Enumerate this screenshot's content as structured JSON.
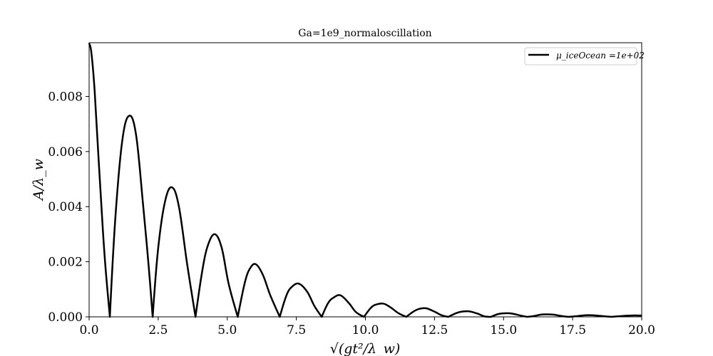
{
  "chart_data": {
    "type": "line",
    "title": "Ga=1e9_normaloscillation",
    "xlabel": "√(gt²/λ_w)",
    "ylabel": "A/λ_w",
    "xlim": [
      0,
      20
    ],
    "ylim": [
      0,
      0.00995
    ],
    "x_ticks": [
      0,
      2.5,
      5,
      7.5,
      10,
      12.5,
      15,
      17.5,
      20
    ],
    "x_tick_labels": [
      "0.0",
      "2.5",
      "5.0",
      "7.5",
      "10.0",
      "12.5",
      "15.0",
      "17.5",
      "20.0"
    ],
    "y_ticks": [
      0,
      0.002,
      0.004,
      0.006,
      0.008
    ],
    "y_tick_labels": [
      "0.000",
      "0.002",
      "0.004",
      "0.006",
      "0.008"
    ],
    "grid": false,
    "legend_position": "top-right",
    "series": [
      {
        "name": "μ_iceOcean =1e+02",
        "color": "#000000",
        "x": [
          0.0,
          0.08,
          0.2,
          0.35,
          0.5,
          0.6,
          0.75,
          0.95,
          1.2,
          1.45,
          1.7,
          1.95,
          2.15,
          2.3,
          2.5,
          2.75,
          3.0,
          3.25,
          3.55,
          3.85,
          4.1,
          4.3,
          4.55,
          4.8,
          5.05,
          5.38,
          5.65,
          5.85,
          6.05,
          6.3,
          6.55,
          6.9,
          7.15,
          7.35,
          7.6,
          7.9,
          8.15,
          8.42,
          8.65,
          8.85,
          9.1,
          9.4,
          9.65,
          9.95,
          10.2,
          10.4,
          10.65,
          10.9,
          11.2,
          11.48,
          11.75,
          11.95,
          12.2,
          12.5,
          12.75,
          13.0,
          13.3,
          13.5,
          13.75,
          14.05,
          14.3,
          14.55,
          14.8,
          15.05,
          15.3,
          15.6,
          15.85,
          16.1,
          16.35,
          16.55,
          16.8,
          17.1,
          17.35,
          17.6,
          17.85,
          18.1,
          18.35,
          18.65,
          18.9,
          19.15,
          19.4,
          19.65,
          19.85,
          20.0
        ],
        "values": [
          0.00993,
          0.0096,
          0.0082,
          0.0056,
          0.0031,
          0.0017,
          0.0,
          0.0036,
          0.0064,
          0.0073,
          0.0066,
          0.0041,
          0.0019,
          0.0,
          0.0025,
          0.0042,
          0.0047,
          0.004,
          0.0019,
          0.0,
          0.0017,
          0.0026,
          0.003,
          0.0025,
          0.0012,
          0.0,
          0.0013,
          0.0018,
          0.0019,
          0.0015,
          0.0008,
          0.0,
          0.0008,
          0.0011,
          0.0012,
          0.0009,
          0.0004,
          0.0,
          0.0005,
          0.0007,
          0.00078,
          0.0005,
          0.00018,
          0.0,
          0.00033,
          0.00045,
          0.00048,
          0.00035,
          0.00013,
          0.0,
          0.0002,
          0.00029,
          0.00031,
          0.00019,
          6e-05,
          0.0,
          0.00014,
          0.00019,
          0.0002,
          0.00012,
          2e-05,
          0.0,
          0.0001,
          0.00013,
          0.00012,
          5e-05,
          0.0,
          3e-05,
          8e-05,
          9e-05,
          8e-05,
          3e-05,
          0.0,
          2e-05,
          5e-05,
          6e-05,
          5e-05,
          2e-05,
          0.0,
          2e-05,
          4e-05,
          5e-05,
          5e-05,
          5e-05
        ]
      }
    ]
  }
}
